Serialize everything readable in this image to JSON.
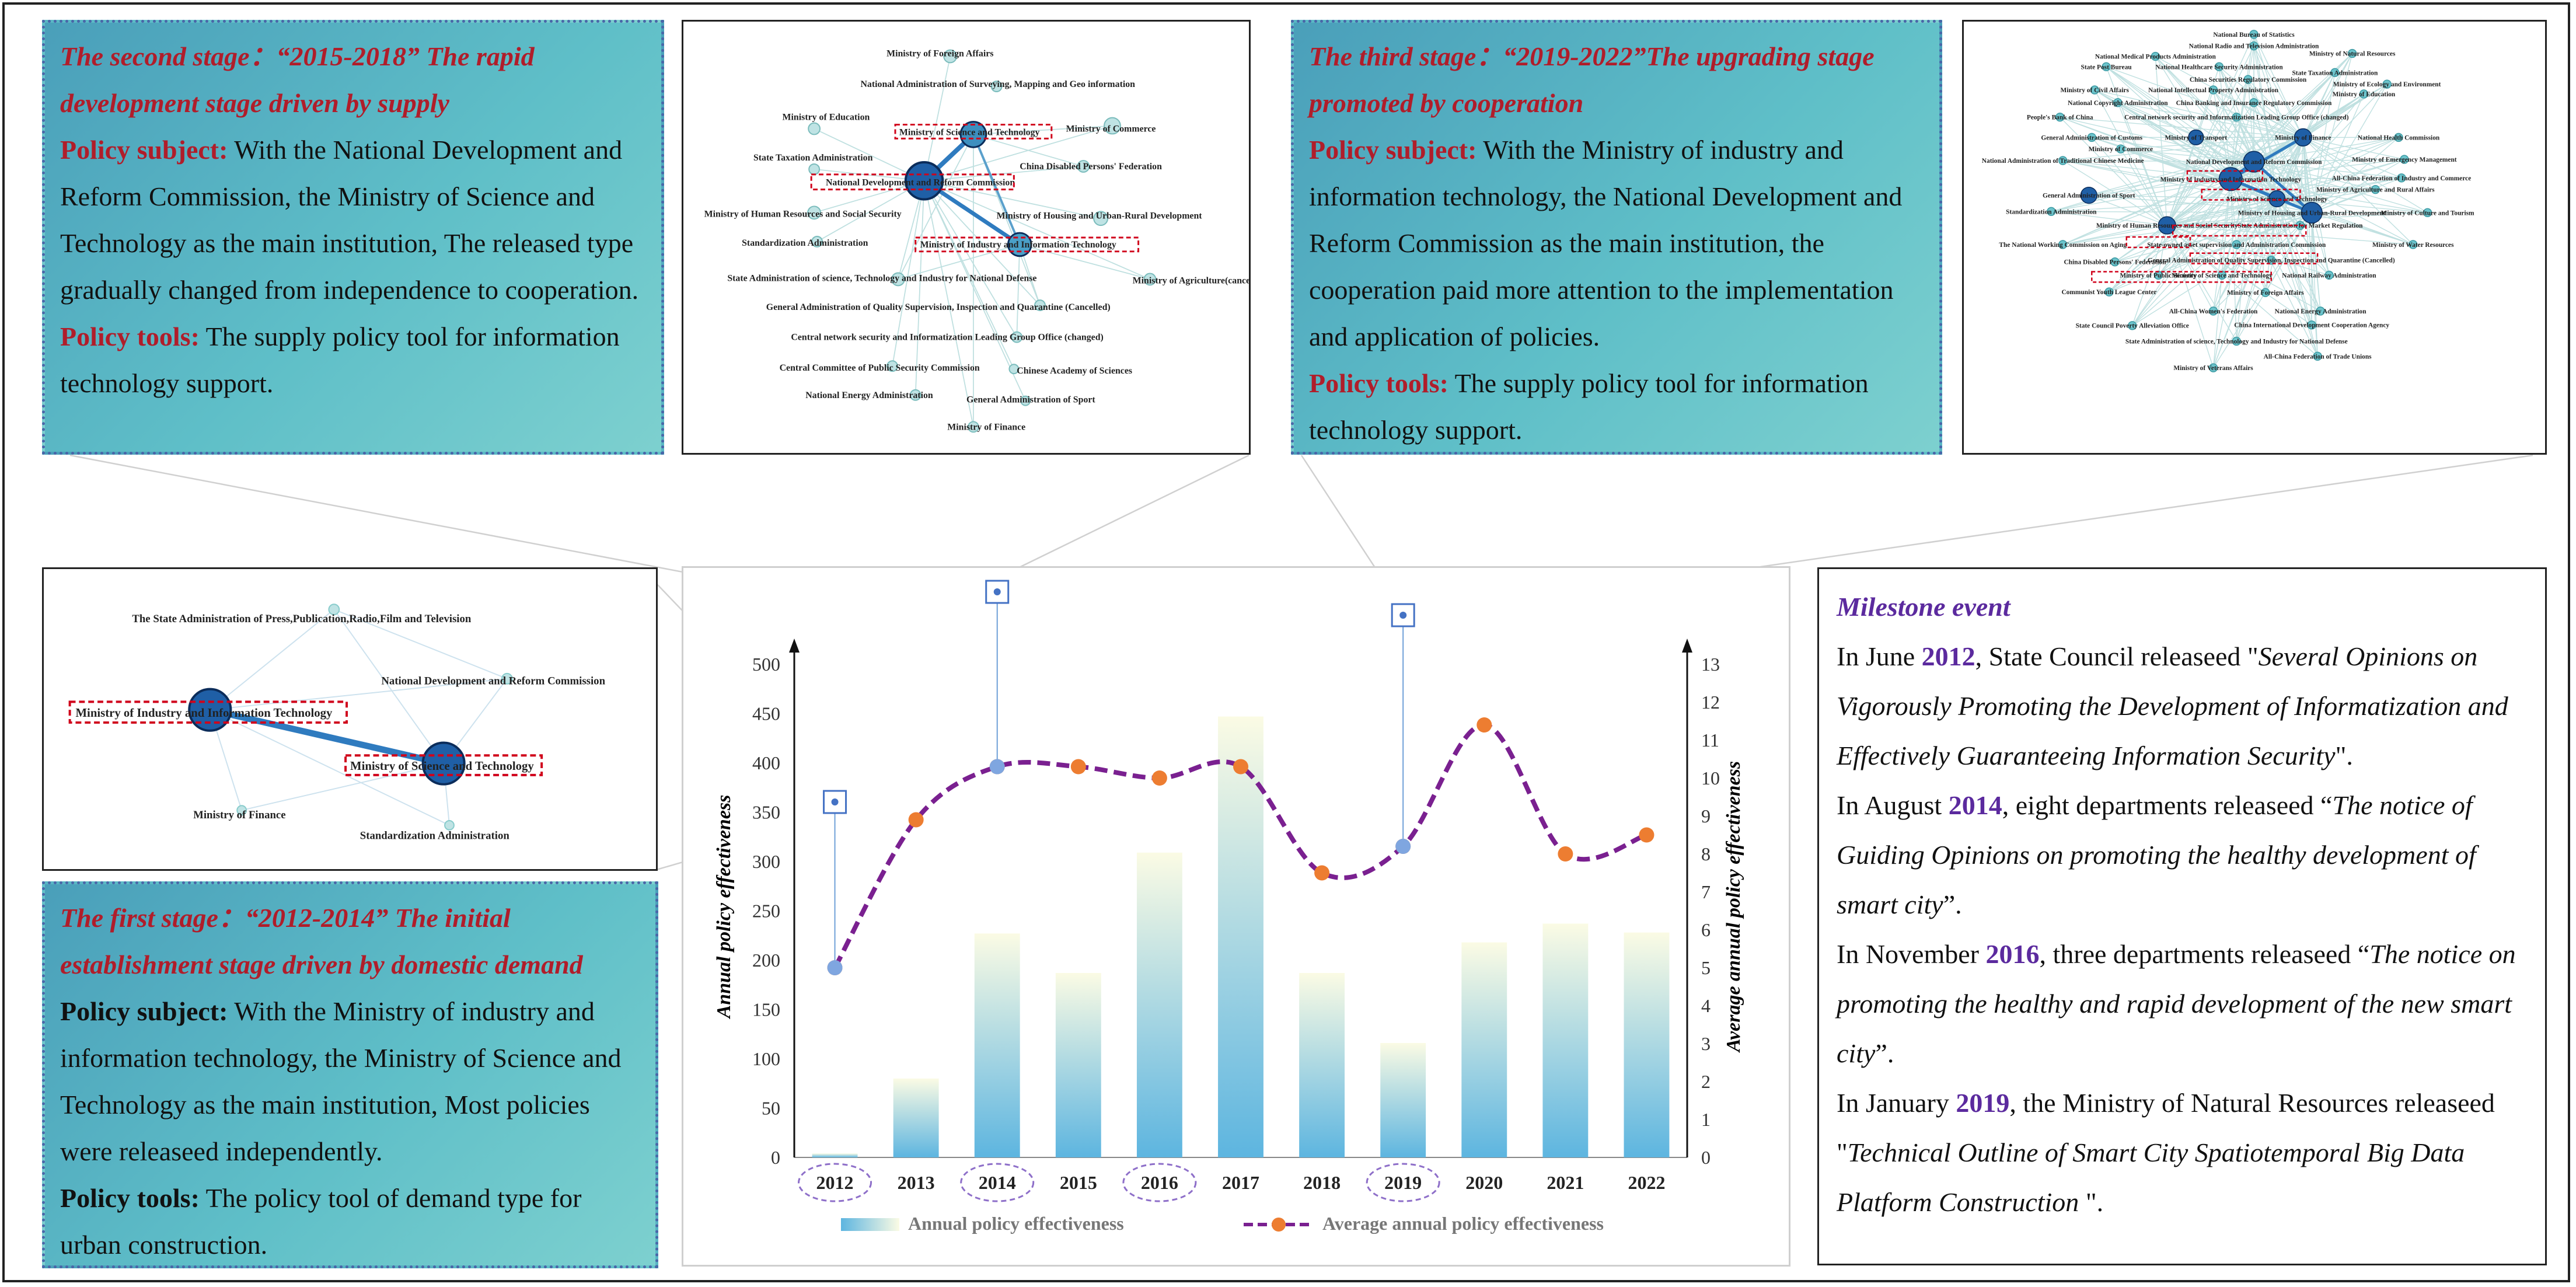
{
  "stage2": {
    "title": "The second stage：“2015-2018” The rapid development stage driven by supply",
    "subject_label": "Policy subject:",
    "subject_text": "With the National Development and Reform Commission, the Ministry of Science and Technology as the main institution, The released type gradually changed from independence to cooperation.",
    "tools_label": "Policy tools:",
    "tools_text": "The supply policy tool for information technology support."
  },
  "stage3": {
    "title": "The third stage：“2019-2022”The upgrading stage promoted by cooperation",
    "subject_label": "Policy subject:",
    "subject_text": "With the Ministry of  industry and information technology, the National Development and Reform Commission as the main institution, the cooperation paid more attention to the implementation and application of policies.",
    "tools_label": "Policy tools:",
    "tools_text": "The supply policy tool for information technology support."
  },
  "stage1": {
    "title": "The first stage：“2012-2014” The initial establishment stage driven by domestic demand",
    "subject_label": "Policy subject:",
    "subject_text": "With the Ministry of industry and information technology, the Ministry of Science and Technology as the main institution, Most policies were releaseed independently.",
    "tools_label": "Policy tools:",
    "tools_text": "The policy tool of demand type for urban construction."
  },
  "net1": {
    "nodes": [
      "The State Administration of Press,Publication,Radio,Film and Television",
      "National Development and Reform Commission",
      "Ministry of Industry and Information Technology",
      "Ministry of Science and Technology",
      "Ministry of Finance",
      "Standardization Administration"
    ]
  },
  "net2": {
    "nodes": [
      "Ministry of Foreign Affairs",
      "National Administration of Surveying, Mapping and Geo information",
      "Ministry of Education",
      "Ministry of Science and Technology",
      "Ministry of Commerce",
      "State Taxation Administration",
      "National Development and Reform Commission",
      "China Disabled Persons' Federation",
      "Ministry of Human Resources and Social Security",
      "Ministry of Housing and Urban-Rural Development",
      "Standardization Administration",
      "Ministry of Industry and Information Technology",
      "State Administration of science, Technology and Industry for National Defense",
      "Ministry of Agriculture(cancelled)",
      "General Administration of Quality Supervision, Inspection and Quarantine (Cancelled)",
      "Central network security and Informatization Leading Group Office (changed)",
      "Central Committee of Public Security Commission",
      "Chinese Academy of Sciences",
      "National Energy Administration",
      "General Administration of Sport",
      "Ministry of Finance"
    ]
  },
  "net3": {
    "nodes": [
      "National Bureau of Statistics",
      "National Radio and Television Administration",
      "National Medical Products Administration",
      "Ministry of Natural Resources",
      "State Post Bureau",
      "National Healthcare Security Administration",
      "State Taxation Administration",
      "China Securities Regulatory Commission",
      "Ministry of Ecology and Environment",
      "Ministry of Civil Affairs",
      "National Intellectual Property Administration",
      "Ministry of Education",
      "National Copyright Administration",
      "China Banking and Insurance Regulatory Commission",
      "People's Bank of China",
      "Central network security and Informatization Leading Group Office (changed)",
      "General Administration of Customs",
      "Ministry of Transport",
      "Ministry of Finance",
      "National Health Commission",
      "National Administration of Traditional Chinese Medicine",
      "National Development and Reform Commission",
      "Ministry of Emergency Management",
      "Ministry of Commerce",
      "Ministry of Industry and Information Technology",
      "All-China Federation of Industry and Commerce",
      "General Administration of Sport",
      "Ministry of Science and Technology",
      "Ministry of Agriculture and Rural Affairs",
      "Standardization Administration",
      "Ministry of Housing and Urban-Rural Development",
      "Ministry of Culture and Tourism",
      "Ministry of Human Resources and Social Security",
      "State Administration for Market Regulation",
      "The National Working Commission on Aging",
      "State-owned asset supervision and Administration Commission",
      "Ministry of Water Resources",
      "China Disabled Persons' Federation",
      "General Administration of Quality Supervision, Inspection and Quarantine (Cancelled)",
      "Ministry of Public Security",
      "Ministry of Science and Technology",
      "National Railway Administration",
      "Communist Youth League Center",
      "Ministry of Foreign Affairs",
      "All-China Women's Federation",
      "National Energy Administration",
      "State Council Poverty Alleviation Office",
      "China International Development Cooperation Agency",
      "State Administration of science, Technology and Industry for National Defense",
      "All-China Federation of Trade Unions",
      "Ministry of Veterans Affairs"
    ]
  },
  "milestone": {
    "title": "Milestone event",
    "e1_pre": "In June ",
    "e1_year": "2012",
    "e1_mid": ", State Council releaseed \"",
    "e1_ital": "Several Opinions on Vigorously Promoting the Development of Informatization and Effectively Guaranteeing Information Security",
    "e1_post": "\".",
    "e2_pre": "In August ",
    "e2_year": "2014",
    "e2_mid": ", eight departments releaseed “",
    "e2_ital": "The notice of Guiding Opinions on promoting the healthy development of smart city",
    "e2_post": "”.",
    "e3_pre": "In November ",
    "e3_year": "2016",
    "e3_mid": ", three departments releaseed “",
    "e3_ital": "The notice on promoting the healthy and rapid development of the new smart city",
    "e3_post": "”.",
    "e4_pre": "In January ",
    "e4_year": "2019",
    "e4_mid": ", the Ministry of Natural Resources releaseed \"",
    "e4_ital": "Technical Outline of Smart City Spatiotemporal Big Data Platform Construction",
    "e4_post": " \"."
  },
  "chart_data": {
    "type": "bar+line",
    "categories": [
      "2012",
      "2013",
      "2014",
      "2015",
      "2016",
      "2017",
      "2018",
      "2019",
      "2020",
      "2021",
      "2022"
    ],
    "highlighted_years": [
      "2012",
      "2014",
      "2016",
      "2019"
    ],
    "series": [
      {
        "name": "Annual policy effectiveness",
        "type": "bar",
        "axis": "left",
        "values": [
          4,
          80,
          227,
          187,
          309,
          447,
          187,
          116,
          218,
          237,
          228
        ]
      },
      {
        "name": "Average annual policy effectiveness",
        "type": "line",
        "axis": "right",
        "values": [
          5.0,
          8.9,
          10.3,
          10.3,
          10.0,
          10.3,
          7.5,
          8.2,
          11.4,
          8.0,
          8.5
        ]
      }
    ],
    "ylabel_left": "Annual policy effectiveness",
    "ylabel_right": "Average annual policy effectiveness",
    "ylim_left": [
      0,
      500
    ],
    "yticks_left": [
      "0",
      "50",
      "100",
      "150",
      "200",
      "250",
      "300",
      "350",
      "400",
      "450",
      "500"
    ],
    "ylim_right": [
      0,
      13
    ],
    "yticks_right": [
      "0",
      "1",
      "2",
      "3",
      "4",
      "5",
      "6",
      "7",
      "8",
      "9",
      "10",
      "11",
      "12",
      "13"
    ],
    "legend": [
      "Annual policy effectiveness",
      "Average annual policy effectiveness"
    ],
    "legend_position": "bottom",
    "colors": {
      "bar_top": "#fbfbe4",
      "bar_bottom": "#5db5e0",
      "line": "#7a2090",
      "marker": "#ed7d31",
      "highlight": "#8e6fc9",
      "pin": "#4472c4"
    }
  }
}
